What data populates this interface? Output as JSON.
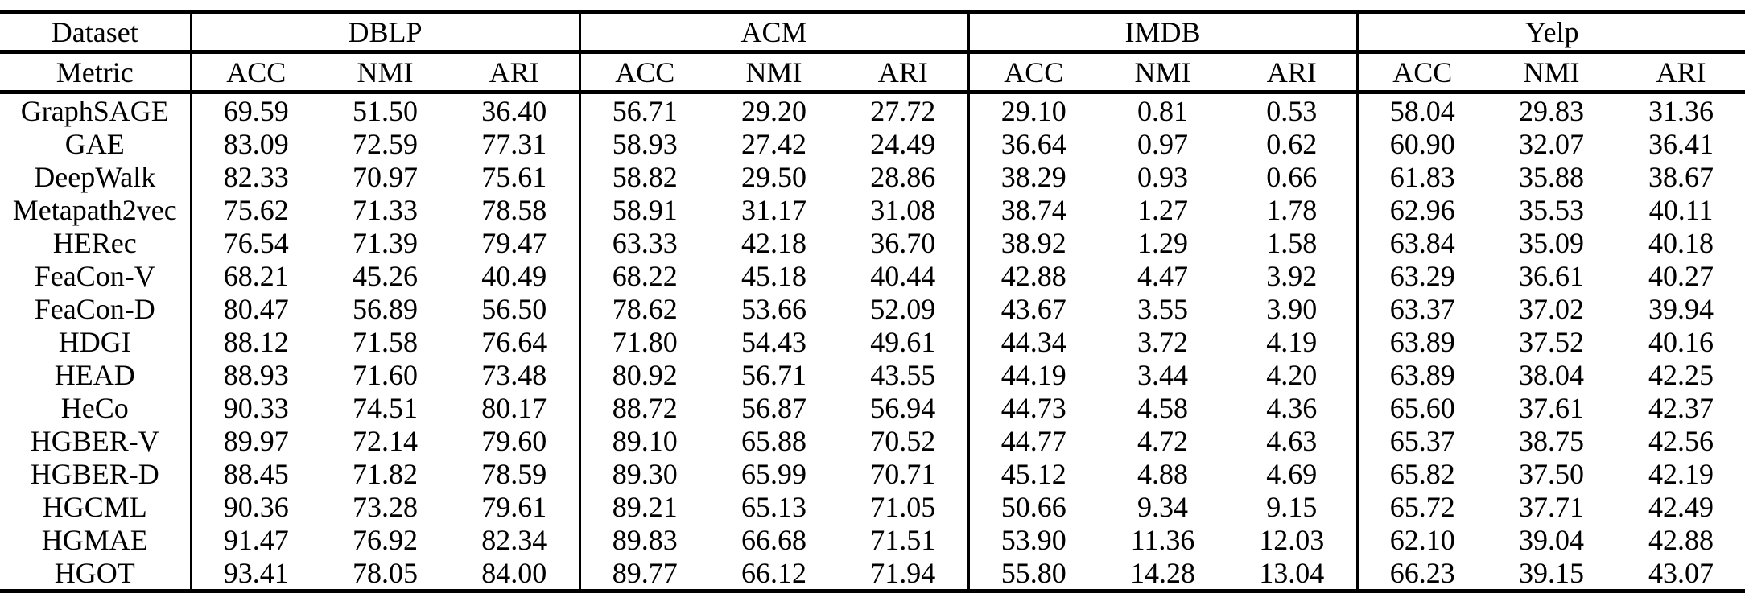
{
  "table": {
    "corner": {
      "dataset": "Dataset",
      "metric": "Metric"
    },
    "groups": [
      {
        "name": "DBLP",
        "metrics": [
          "ACC",
          "NMI",
          "ARI"
        ]
      },
      {
        "name": "ACM",
        "metrics": [
          "ACC",
          "NMI",
          "ARI"
        ]
      },
      {
        "name": "IMDB",
        "metrics": [
          "ACC",
          "NMI",
          "ARI"
        ]
      },
      {
        "name": "Yelp",
        "metrics": [
          "ACC",
          "NMI",
          "ARI"
        ]
      }
    ],
    "rows": [
      {
        "method": "GraphSAGE",
        "bold_method": false,
        "bold_cells": [],
        "values": [
          "69.59",
          "51.50",
          "36.40",
          "56.71",
          "29.20",
          "27.72",
          "29.10",
          "0.81",
          "0.53",
          "58.04",
          "29.83",
          "31.36"
        ]
      },
      {
        "method": "GAE",
        "bold_method": false,
        "bold_cells": [],
        "values": [
          "83.09",
          "72.59",
          "77.31",
          "58.93",
          "27.42",
          "24.49",
          "36.64",
          "0.97",
          "0.62",
          "60.90",
          "32.07",
          "36.41"
        ]
      },
      {
        "method": "DeepWalk",
        "bold_method": false,
        "bold_cells": [],
        "values": [
          "82.33",
          "70.97",
          "75.61",
          "58.82",
          "29.50",
          "28.86",
          "38.29",
          "0.93",
          "0.66",
          "61.83",
          "35.88",
          "38.67"
        ]
      },
      {
        "method": "Metapath2vec",
        "bold_method": false,
        "bold_cells": [],
        "values": [
          "75.62",
          "71.33",
          "78.58",
          "58.91",
          "31.17",
          "31.08",
          "38.74",
          "1.27",
          "1.78",
          "62.96",
          "35.53",
          "40.11"
        ]
      },
      {
        "method": "HERec",
        "bold_method": false,
        "bold_cells": [],
        "values": [
          "76.54",
          "71.39",
          "79.47",
          "63.33",
          "42.18",
          "36.70",
          "38.92",
          "1.29",
          "1.58",
          "63.84",
          "35.09",
          "40.18"
        ]
      },
      {
        "method": "FeaCon-V",
        "bold_method": false,
        "bold_cells": [],
        "values": [
          "68.21",
          "45.26",
          "40.49",
          "68.22",
          "45.18",
          "40.44",
          "42.88",
          "4.47",
          "3.92",
          "63.29",
          "36.61",
          "40.27"
        ]
      },
      {
        "method": "FeaCon-D",
        "bold_method": false,
        "bold_cells": [],
        "values": [
          "80.47",
          "56.89",
          "56.50",
          "78.62",
          "53.66",
          "52.09",
          "43.67",
          "3.55",
          "3.90",
          "63.37",
          "37.02",
          "39.94"
        ]
      },
      {
        "method": "HDGI",
        "bold_method": false,
        "bold_cells": [],
        "values": [
          "88.12",
          "71.58",
          "76.64",
          "71.80",
          "54.43",
          "49.61",
          "44.34",
          "3.72",
          "4.19",
          "63.89",
          "37.52",
          "40.16"
        ]
      },
      {
        "method": "HEAD",
        "bold_method": false,
        "bold_cells": [],
        "values": [
          "88.93",
          "71.60",
          "73.48",
          "80.92",
          "56.71",
          "43.55",
          "44.19",
          "3.44",
          "4.20",
          "63.89",
          "38.04",
          "42.25"
        ]
      },
      {
        "method": "HeCo",
        "bold_method": false,
        "bold_cells": [],
        "values": [
          "90.33",
          "74.51",
          "80.17",
          "88.72",
          "56.87",
          "56.94",
          "44.73",
          "4.58",
          "4.36",
          "65.60",
          "37.61",
          "42.37"
        ]
      },
      {
        "method": "HGBER-V",
        "bold_method": false,
        "bold_cells": [],
        "values": [
          "89.97",
          "72.14",
          "79.60",
          "89.10",
          "65.88",
          "70.52",
          "44.77",
          "4.72",
          "4.63",
          "65.37",
          "38.75",
          "42.56"
        ]
      },
      {
        "method": "HGBER-D",
        "bold_method": false,
        "bold_cells": [],
        "values": [
          "88.45",
          "71.82",
          "78.59",
          "89.30",
          "65.99",
          "70.71",
          "45.12",
          "4.88",
          "4.69",
          "65.82",
          "37.50",
          "42.19"
        ]
      },
      {
        "method": "HGCML",
        "bold_method": false,
        "bold_cells": [],
        "values": [
          "90.36",
          "73.28",
          "79.61",
          "89.21",
          "65.13",
          "71.05",
          "50.66",
          "9.34",
          "9.15",
          "65.72",
          "37.71",
          "42.49"
        ]
      },
      {
        "method": "HGMAE",
        "bold_method": false,
        "bold_cells": [
          3,
          4
        ],
        "values": [
          "91.47",
          "76.92",
          "82.34",
          "89.83",
          "66.68",
          "71.51",
          "53.90",
          "11.36",
          "12.03",
          "62.10",
          "39.04",
          "42.88"
        ]
      },
      {
        "method": "HGOT",
        "bold_method": true,
        "bold_cells": [
          0,
          1,
          2,
          5,
          6,
          7,
          8,
          9,
          10,
          11
        ],
        "values": [
          "93.41",
          "78.05",
          "84.00",
          "89.77",
          "66.12",
          "71.94",
          "55.80",
          "14.28",
          "13.04",
          "66.23",
          "39.15",
          "43.07"
        ]
      }
    ]
  }
}
